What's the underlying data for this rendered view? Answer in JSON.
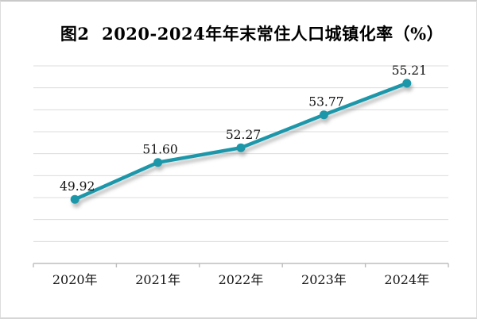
{
  "chart_data": {
    "type": "line",
    "title": "图2  2020-2024年年末常住人口城镇化率（%）",
    "categories": [
      "2020年",
      "2021年",
      "2022年",
      "2023年",
      "2024年"
    ],
    "series": [
      {
        "name": "年末常住人口城镇化率",
        "values": [
          49.92,
          51.6,
          52.27,
          53.77,
          55.21
        ]
      }
    ],
    "value_labels": [
      "49.92",
      "51.60",
      "52.27",
      "53.77",
      "55.21"
    ],
    "xlabel": "",
    "ylabel": "",
    "ylim": [
      47,
      56
    ],
    "grid_step": 1,
    "grid": "horizontal-only",
    "y_tick_labels_visible": false,
    "legend": "none",
    "colors": {
      "line": "#1f97a9",
      "grid": "#dcdcdc",
      "axis": "#bdbdbd",
      "label_text": "#141414",
      "title_text": "#000000",
      "background": "#ffffff",
      "frame_border": "#d0d0d0"
    }
  }
}
